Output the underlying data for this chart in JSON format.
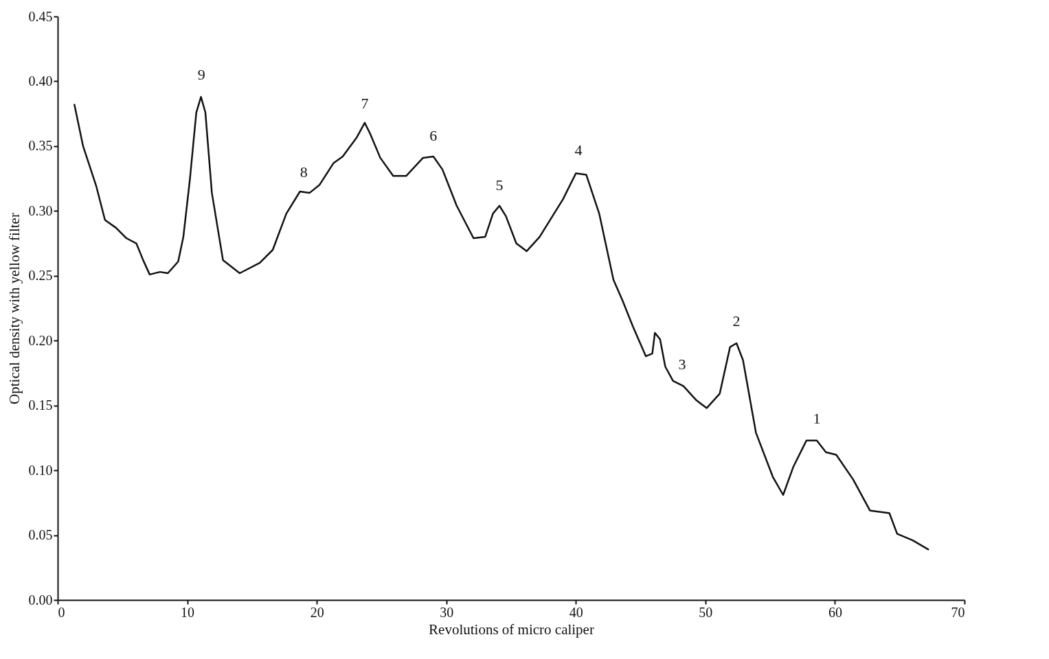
{
  "chart_data": {
    "type": "line",
    "xlabel": "Revolutions of micro caliper",
    "ylabel": "Optical density with yellow filter",
    "xlim": [
      0,
      70
    ],
    "xticks": [
      0,
      10,
      20,
      30,
      40,
      50,
      60,
      70
    ],
    "ylim": [
      0,
      0.45
    ],
    "yticks": [
      {
        "value": 0,
        "label": "0.00"
      },
      0.05,
      {
        "value": 0.1,
        "label": "0.10"
      },
      0.15,
      {
        "value": 0.2,
        "label": "0.20"
      },
      0.25,
      {
        "value": 0.3,
        "label": "0.30"
      },
      0.35,
      {
        "value": 0.4,
        "label": "0.40"
      },
      0.45
    ],
    "grid": false,
    "legend": false,
    "marker": "none",
    "line_style": "solid",
    "series": [
      {
        "color": "#111111",
        "x": [
          1.29,
          1.96,
          2.98,
          3.65,
          4.5,
          5.3,
          6.07,
          6.6,
          7.1,
          7.9,
          8.5,
          9.3,
          9.7,
          10.2,
          10.7,
          11.06,
          11.4,
          11.9,
          12.76,
          14.05,
          15.6,
          16.6,
          17.65,
          18.7,
          19.45,
          20.2,
          21.3,
          22.0,
          23.1,
          23.7,
          24.1,
          24.9,
          25.9,
          26.9,
          28.2,
          29.0,
          29.7,
          30.8,
          32.1,
          33.0,
          33.6,
          34.1,
          34.6,
          35.4,
          36.2,
          37.2,
          39.0,
          40.0,
          40.8,
          41.8,
          42.9,
          43.6,
          44.4,
          45.4,
          45.9,
          46.1,
          46.5,
          46.9,
          47.5,
          48.3,
          49.3,
          50.1,
          51.1,
          51.9,
          52.4,
          52.9,
          53.9,
          55.2,
          56.0,
          56.8,
          57.8,
          58.6,
          59.3,
          60.1,
          61.4,
          62.7,
          64.2,
          64.8,
          66.0,
          67.2
        ],
        "values": [
          0.382,
          0.35,
          0.319,
          0.293,
          0.287,
          0.279,
          0.275,
          0.262,
          0.251,
          0.253,
          0.252,
          0.261,
          0.28,
          0.324,
          0.376,
          0.388,
          0.376,
          0.314,
          0.262,
          0.252,
          0.26,
          0.27,
          0.298,
          0.315,
          0.314,
          0.32,
          0.337,
          0.342,
          0.357,
          0.368,
          0.36,
          0.341,
          0.327,
          0.327,
          0.341,
          0.342,
          0.332,
          0.304,
          0.279,
          0.28,
          0.298,
          0.304,
          0.296,
          0.275,
          0.269,
          0.28,
          0.309,
          0.329,
          0.328,
          0.298,
          0.247,
          0.231,
          0.211,
          0.188,
          0.19,
          0.206,
          0.201,
          0.18,
          0.169,
          0.165,
          0.154,
          0.148,
          0.159,
          0.195,
          0.198,
          0.185,
          0.129,
          0.095,
          0.081,
          0.103,
          0.123,
          0.123,
          0.114,
          0.112,
          0.093,
          0.069,
          0.067,
          0.051,
          0.046,
          0.039
        ]
      }
    ],
    "annotations": [
      {
        "text": "9",
        "x": 11.1,
        "y": 0.39
      },
      {
        "text": "8",
        "x": 19.0,
        "y": 0.315
      },
      {
        "text": "7",
        "x": 23.7,
        "y": 0.368
      },
      {
        "text": "6",
        "x": 29.0,
        "y": 0.343
      },
      {
        "text": "5",
        "x": 34.1,
        "y": 0.305
      },
      {
        "text": "4",
        "x": 40.2,
        "y": 0.332
      },
      {
        "text": "3",
        "x": 48.2,
        "y": 0.167
      },
      {
        "text": "2",
        "x": 52.4,
        "y": 0.2
      },
      {
        "text": "1",
        "x": 58.6,
        "y": 0.125
      }
    ]
  }
}
